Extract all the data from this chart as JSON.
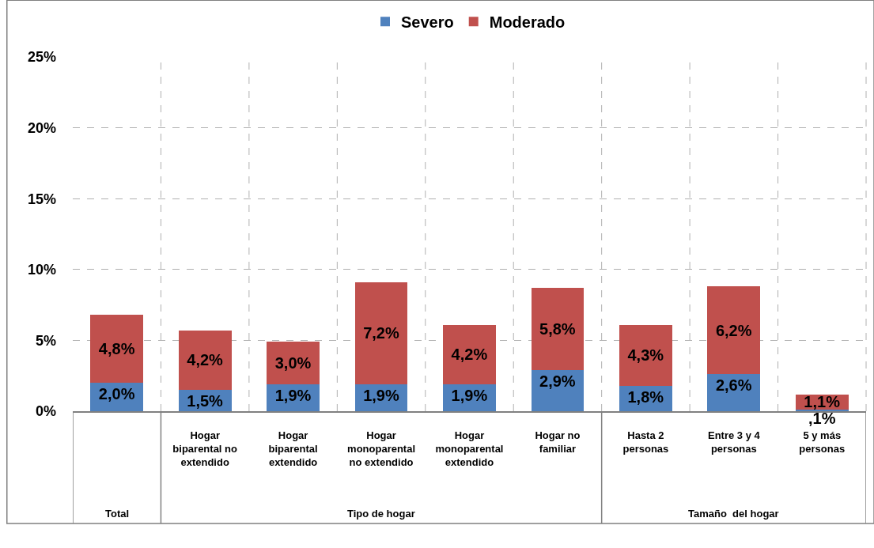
{
  "chart_data": {
    "type": "bar",
    "stacked": true,
    "categories": [
      null,
      "Hogar biparental no extendido",
      "Hogar biparental extendido",
      "Hogar monoparental no extendido",
      "Hogar monoparental extendido",
      "Hogar no familiar",
      "Hasta 2 personas",
      "Entre 3 y 4 personas",
      "5 y más personas"
    ],
    "series": [
      {
        "name": "Severo",
        "color": "#4f81bd",
        "values": [
          2.0,
          1.5,
          1.9,
          1.9,
          1.9,
          2.9,
          1.8,
          2.6,
          0.1
        ],
        "value_labels": [
          "2,0%",
          "1,5%",
          "1,9%",
          "1,9%",
          "1,9%",
          "2,9%",
          "1,8%",
          "2,6%",
          null
        ]
      },
      {
        "name": "Moderado",
        "color": "#c0504d",
        "values": [
          4.8,
          4.2,
          3.0,
          7.2,
          4.2,
          5.8,
          4.3,
          6.2,
          1.1
        ],
        "value_labels": [
          "4,8%",
          "4,2%",
          "3,0%",
          "7,2%",
          "4,2%",
          "5,8%",
          "4,3%",
          "6,2%",
          "1,1%"
        ]
      }
    ],
    "ylim": [
      0,
      25
    ],
    "yticks": [
      {
        "value": 0,
        "label": "0%"
      },
      {
        "value": 5,
        "label": "5%"
      },
      {
        "value": 10,
        "label": "10%"
      },
      {
        "value": 15,
        "label": "15%"
      },
      {
        "value": 20,
        "label": "20%"
      },
      {
        "value": 25,
        "label": "25%"
      }
    ],
    "annotations": [
      "Total",
      "Tipo de hogar",
      "Tamaño  del hogar",
      {
        "text": ",1%",
        "x": "5 y más personas",
        "y": 0.1
      }
    ],
    "grid": true,
    "legend": "top"
  }
}
